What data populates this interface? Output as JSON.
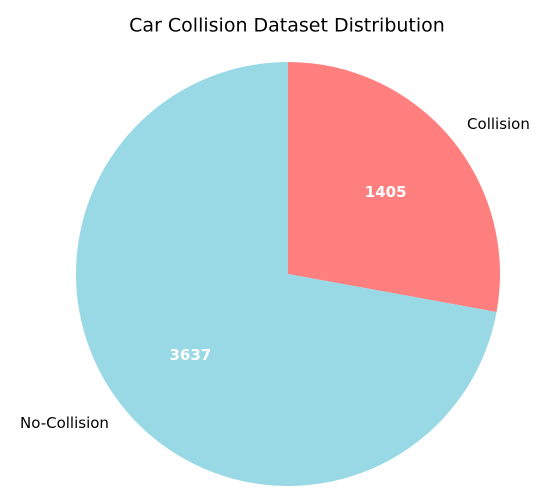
{
  "chart_data": {
    "type": "pie",
    "title": "Car Collision Dataset Distribution",
    "categories": [
      "Collision",
      "No-Collision"
    ],
    "values": [
      1405,
      3637
    ],
    "colors": [
      "#ff7f7f",
      "#99d9e6"
    ]
  }
}
